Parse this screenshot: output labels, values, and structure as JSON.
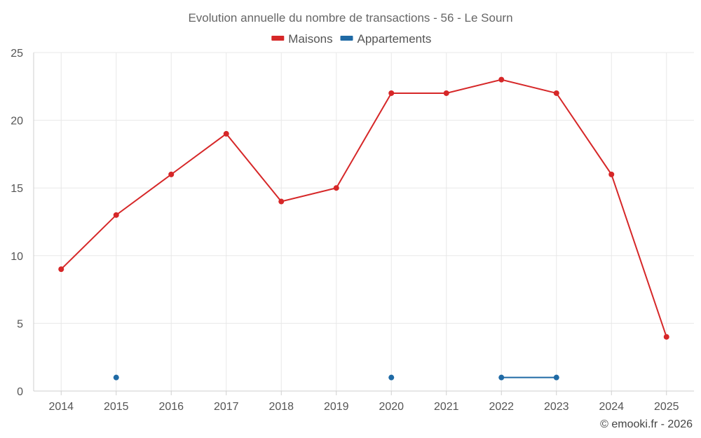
{
  "chart_data": {
    "type": "line",
    "title": "Evolution annuelle du nombre de transactions - 56 - Le Sourn",
    "categories": [
      "2014",
      "2015",
      "2016",
      "2017",
      "2018",
      "2019",
      "2020",
      "2021",
      "2022",
      "2023",
      "2024",
      "2025"
    ],
    "series": [
      {
        "name": "Maisons",
        "color": "#d62728",
        "values": [
          9,
          13,
          16,
          19,
          14,
          15,
          22,
          22,
          23,
          22,
          16,
          4
        ]
      },
      {
        "name": "Appartements",
        "color": "#1f6aa5",
        "values": [
          null,
          1,
          null,
          null,
          null,
          null,
          1,
          null,
          1,
          1,
          null,
          null
        ]
      }
    ],
    "ylim": [
      0,
      25
    ],
    "yticks": [
      "0",
      "5",
      "10",
      "15",
      "20",
      "25"
    ],
    "ytick_values": [
      0,
      5,
      10,
      15,
      20,
      25
    ],
    "xlabel": "",
    "ylabel": "",
    "grid": true,
    "legend_position": "top-center"
  },
  "credit": "© emooki.fr - 2026"
}
